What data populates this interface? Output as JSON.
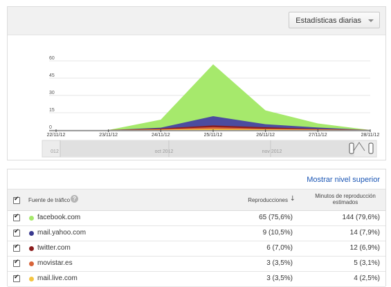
{
  "toolbar": {
    "dropdown_label": "Estadísticas diarias"
  },
  "chart_data": {
    "type": "area",
    "stacked": true,
    "x": [
      "22/11/12",
      "23/11/12",
      "24/11/12",
      "25/11/12",
      "26/11/12",
      "27/11/12",
      "28/11/12"
    ],
    "yticks": [
      0,
      15,
      30,
      45,
      60
    ],
    "ylim": [
      0,
      60
    ],
    "grid": true,
    "series": [
      {
        "name": "mail.live.com",
        "color": "#f4c542",
        "values": [
          0,
          0,
          0.3,
          1,
          0.5,
          0.3,
          0
        ]
      },
      {
        "name": "movistar.es",
        "color": "#d8643a",
        "values": [
          0,
          0,
          0.4,
          1.5,
          0.7,
          0.3,
          0
        ]
      },
      {
        "name": "twitter.com",
        "color": "#8b1d1d",
        "values": [
          0,
          0,
          0.6,
          1.5,
          1.2,
          0.4,
          0
        ]
      },
      {
        "name": "mail.yahoo.com",
        "color": "#4c4c9f",
        "values": [
          0,
          0,
          0.7,
          8,
          2.6,
          1.2,
          0
        ]
      },
      {
        "name": "facebook.com",
        "color": "#a6e96c",
        "values": [
          0,
          0,
          7,
          45,
          12,
          3.5,
          0
        ]
      }
    ],
    "timeline_labels": [
      "012",
      "oct 2012",
      "nov 2012"
    ]
  },
  "table": {
    "show_parent_link": "Mostrar nivel superior",
    "headers": {
      "source": "Fuente de tráfico",
      "plays": "Reproducciones",
      "minutes": "Minutos de reproducción estimados"
    },
    "rows": [
      {
        "source": "facebook.com",
        "color": "#a6e96c",
        "plays": "65 (75,6%)",
        "minutes": "144 (79,6%)"
      },
      {
        "source": "mail.yahoo.com",
        "color": "#3a3a8f",
        "plays": "9 (10,5%)",
        "minutes": "14 (7,9%)"
      },
      {
        "source": "twitter.com",
        "color": "#8b1d1d",
        "plays": "6 (7,0%)",
        "minutes": "12 (6,9%)"
      },
      {
        "source": "movistar.es",
        "color": "#d8643a",
        "plays": "3 (3,5%)",
        "minutes": "5 (3,1%)"
      },
      {
        "source": "mail.live.com",
        "color": "#f4c542",
        "plays": "3 (3,5%)",
        "minutes": "4 (2,5%)"
      }
    ]
  }
}
